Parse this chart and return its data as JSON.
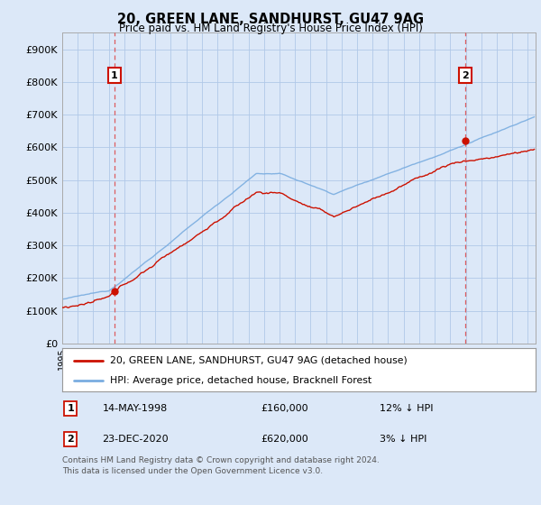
{
  "title": "20, GREEN LANE, SANDHURST, GU47 9AG",
  "subtitle": "Price paid vs. HM Land Registry's House Price Index (HPI)",
  "ylabel_ticks": [
    "£0",
    "£100K",
    "£200K",
    "£300K",
    "£400K",
    "£500K",
    "£600K",
    "£700K",
    "£800K",
    "£900K"
  ],
  "ytick_values": [
    0,
    100000,
    200000,
    300000,
    400000,
    500000,
    600000,
    700000,
    800000,
    900000
  ],
  "ylim": [
    0,
    950000
  ],
  "xlim_start": 1995.0,
  "xlim_end": 2025.5,
  "hpi_color": "#7aade0",
  "price_color": "#cc1100",
  "dashed_color": "#dd4444",
  "sale1_year": 1998.37,
  "sale1_price": 160000,
  "sale1_label": "1",
  "sale2_year": 2020.98,
  "sale2_price": 620000,
  "sale2_label": "2",
  "legend_line1": "20, GREEN LANE, SANDHURST, GU47 9AG (detached house)",
  "legend_line2": "HPI: Average price, detached house, Bracknell Forest",
  "table_row1": [
    "1",
    "14-MAY-1998",
    "£160,000",
    "12% ↓ HPI"
  ],
  "table_row2": [
    "2",
    "23-DEC-2020",
    "£620,000",
    "3% ↓ HPI"
  ],
  "footnote": "Contains HM Land Registry data © Crown copyright and database right 2024.\nThis data is licensed under the Open Government Licence v3.0.",
  "background_color": "#dce8f8",
  "plot_bg_color": "#dce8f8",
  "grid_color": "#b0c8e8"
}
